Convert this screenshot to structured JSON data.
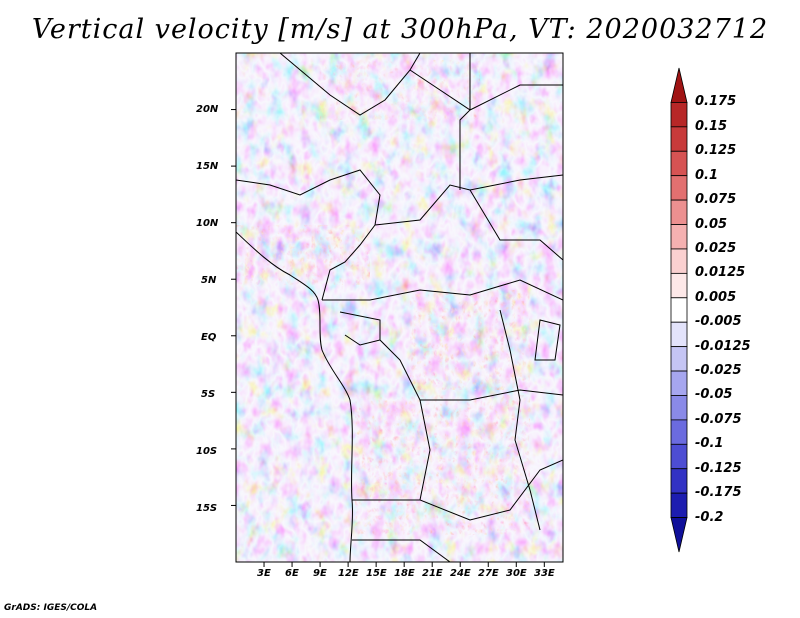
{
  "title": "Vertical velocity [m/s] at 300hPa, VT: 2020032712",
  "credit": "GrADS: IGES/COLA",
  "map": {
    "lat_labels": [
      "20N",
      "15N",
      "10N",
      "5N",
      "EQ",
      "5S",
      "10S",
      "15S"
    ],
    "lat_values": [
      20,
      15,
      10,
      5,
      0,
      -5,
      -10,
      -15
    ],
    "lon_labels": [
      "3E",
      "6E",
      "9E",
      "12E",
      "15E",
      "18E",
      "21E",
      "24E",
      "27E",
      "30E",
      "33E"
    ],
    "lon_values": [
      3,
      6,
      9,
      12,
      15,
      18,
      21,
      24,
      27,
      30,
      33
    ],
    "lon_range": [
      0,
      35
    ],
    "lat_range": [
      -20,
      25
    ]
  },
  "colorbar": {
    "labels": [
      "0.175",
      "0.15",
      "0.125",
      "0.1",
      "0.075",
      "0.05",
      "0.025",
      "0.0125",
      "0.005",
      "-0.005",
      "-0.0125",
      "-0.025",
      "-0.05",
      "-0.075",
      "-0.1",
      "-0.125",
      "-0.175",
      "-0.2"
    ],
    "colors": [
      "#a01414",
      "#b72727",
      "#c83a3a",
      "#d65353",
      "#e27070",
      "#ec9090",
      "#f5b1b1",
      "#fad0d0",
      "#fde8e8",
      "#ffffff",
      "#e3e3fb",
      "#c5c5f4",
      "#a6a6ef",
      "#8a8ae8",
      "#6b6bdf",
      "#4d4dd3",
      "#3232c4",
      "#1d1db0",
      "#10109a"
    ]
  }
}
